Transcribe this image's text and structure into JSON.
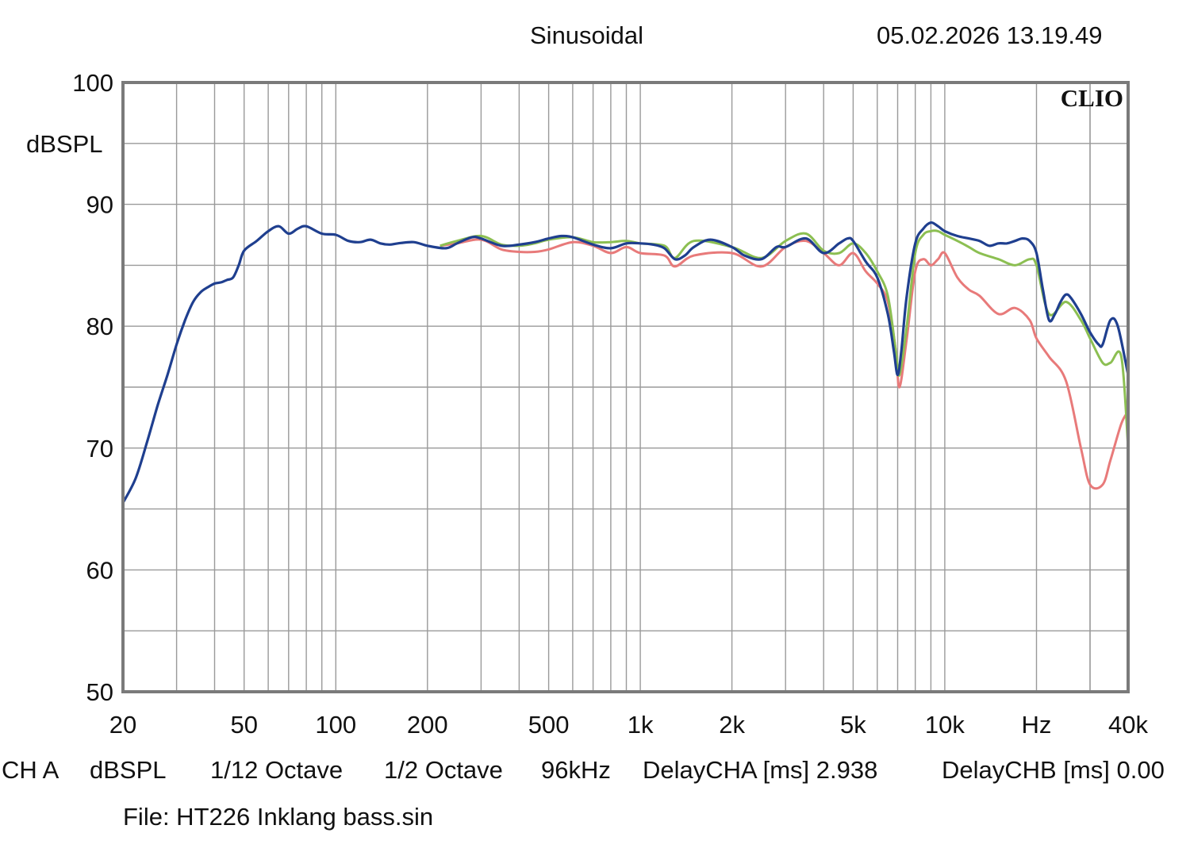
{
  "header": {
    "mode": "Sinusoidal",
    "timestamp": "05.02.2026 13.19.49",
    "logo": "CLIO"
  },
  "footer": {
    "channel": "CH A",
    "unit": "dBSPL",
    "resolution": "1/12 Octave",
    "smoothing": "1/2 Octave",
    "sample_rate": "96kHz",
    "delay_a": "DelayCHA [ms] 2.938",
    "delay_b": "DelayCHB [ms] 0.00",
    "file": "File: HT226 Inklang bass.sin"
  },
  "colors": {
    "frame": "#7a7a7a",
    "grid": "#9a9a9a",
    "blue": "#1f3f8f",
    "green": "#8cbf52",
    "red": "#e87a7a"
  },
  "chart_data": {
    "type": "line",
    "title": "Sinusoidal",
    "xlabel": "Hz",
    "ylabel": "dBSPL",
    "xscale": "log",
    "xlim": [
      20,
      40000
    ],
    "ylim": [
      50,
      100
    ],
    "grid": true,
    "y_ticks": [
      "100",
      "90",
      "80",
      "70",
      "60",
      "50"
    ],
    "y_tick_values": [
      100,
      90,
      80,
      70,
      60,
      50
    ],
    "x_tick_labels": [
      "20",
      "50",
      "100",
      "200",
      "500",
      "1k",
      "2k",
      "5k",
      "10k",
      "Hz",
      "40k"
    ],
    "x_tick_values": [
      20,
      50,
      100,
      200,
      500,
      1000,
      2000,
      5000,
      10000,
      20000,
      40000
    ],
    "series": [
      {
        "name": "red",
        "color": "#e87a7a",
        "x": [
          220,
          250,
          300,
          350,
          400,
          450,
          500,
          600,
          700,
          800,
          900,
          1000,
          1200,
          1300,
          1500,
          2000,
          2500,
          3000,
          3500,
          4000,
          4500,
          5000,
          5500,
          6000,
          6500,
          6900,
          7100,
          7500,
          8000,
          8500,
          9000,
          9500,
          10000,
          11000,
          12000,
          13000,
          15000,
          17000,
          19000,
          20000,
          22000,
          25000,
          28000,
          30000,
          33000,
          35000,
          38000,
          40000
        ],
        "y": [
          86.6,
          86.8,
          87.1,
          86.3,
          86.1,
          86.1,
          86.3,
          86.9,
          86.6,
          86.0,
          86.5,
          86.0,
          85.8,
          84.9,
          85.8,
          86.0,
          84.9,
          86.5,
          87.0,
          86.0,
          85.0,
          86.0,
          84.5,
          83.5,
          82.0,
          78.0,
          75.0,
          79.0,
          84.5,
          85.5,
          85.0,
          85.5,
          86.0,
          84.0,
          83.0,
          82.5,
          81.0,
          81.5,
          80.5,
          79.0,
          77.5,
          75.5,
          70.0,
          67.0,
          67.0,
          69.0,
          72.0,
          73.0
        ]
      },
      {
        "name": "green",
        "color": "#8cbf52",
        "x": [
          220,
          250,
          300,
          350,
          400,
          450,
          500,
          600,
          700,
          800,
          900,
          1000,
          1200,
          1300,
          1500,
          2000,
          2500,
          3000,
          3500,
          4000,
          4500,
          5000,
          5500,
          6000,
          6500,
          6900,
          7100,
          7500,
          8000,
          8500,
          9000,
          9500,
          10000,
          11000,
          12000,
          13000,
          15000,
          17000,
          19000,
          20000,
          22000,
          25000,
          28000,
          30000,
          33000,
          35000,
          38000,
          40000
        ],
        "y": [
          86.6,
          87.0,
          87.4,
          86.7,
          86.6,
          86.8,
          87.1,
          87.3,
          86.9,
          86.9,
          87.0,
          86.8,
          86.6,
          85.6,
          87.0,
          86.5,
          85.6,
          87.0,
          87.6,
          86.2,
          86.0,
          86.8,
          86.0,
          84.5,
          82.5,
          78.0,
          76.0,
          80.0,
          86.0,
          87.5,
          87.8,
          87.8,
          87.5,
          87.0,
          86.5,
          86.0,
          85.5,
          85.0,
          85.5,
          85.0,
          81.0,
          82.0,
          80.5,
          79.0,
          77.0,
          77.0,
          77.5,
          70.0
        ]
      },
      {
        "name": "blue",
        "color": "#1f3f8f",
        "x": [
          20,
          22,
          24,
          26,
          28,
          30,
          32,
          34,
          36,
          38,
          40,
          42,
          44,
          46,
          48,
          50,
          55,
          60,
          65,
          70,
          75,
          80,
          90,
          100,
          110,
          120,
          130,
          140,
          150,
          160,
          180,
          200,
          230,
          250,
          280,
          300,
          350,
          400,
          450,
          500,
          550,
          600,
          700,
          800,
          900,
          1000,
          1100,
          1200,
          1300,
          1400,
          1500,
          1700,
          2000,
          2200,
          2500,
          2800,
          3000,
          3500,
          4000,
          4500,
          4800,
          5000,
          5500,
          6000,
          6500,
          6800,
          7000,
          7200,
          7500,
          8000,
          8500,
          9000,
          9500,
          10000,
          11000,
          12000,
          13000,
          14000,
          15000,
          16000,
          17000,
          18000,
          19000,
          20000,
          21000,
          22000,
          23000,
          24000,
          25000,
          26000,
          28000,
          30000,
          32000,
          33000,
          35000,
          37000,
          40000
        ],
        "y": [
          65.5,
          67.5,
          70.5,
          73.5,
          76.0,
          78.5,
          80.5,
          82.0,
          82.8,
          83.2,
          83.5,
          83.6,
          83.8,
          84.0,
          85.0,
          86.2,
          87.0,
          87.8,
          88.2,
          87.6,
          88.0,
          88.2,
          87.6,
          87.5,
          87.0,
          86.9,
          87.1,
          86.8,
          86.7,
          86.8,
          86.9,
          86.6,
          86.4,
          86.8,
          87.3,
          87.2,
          86.6,
          86.7,
          86.9,
          87.2,
          87.4,
          87.3,
          86.7,
          86.4,
          86.8,
          86.8,
          86.7,
          86.4,
          85.5,
          85.8,
          86.5,
          87.1,
          86.5,
          85.8,
          85.5,
          86.5,
          86.5,
          87.2,
          86.0,
          86.8,
          87.2,
          87.0,
          85.3,
          84.0,
          81.0,
          78.0,
          76.0,
          78.0,
          82.5,
          86.8,
          88.0,
          88.5,
          88.2,
          87.8,
          87.4,
          87.2,
          87.0,
          86.6,
          86.8,
          86.8,
          87.0,
          87.2,
          87.0,
          86.0,
          83.0,
          80.5,
          81.0,
          82.0,
          82.6,
          82.3,
          81.0,
          79.5,
          78.5,
          78.5,
          80.5,
          80.0,
          76.0
        ]
      }
    ]
  }
}
